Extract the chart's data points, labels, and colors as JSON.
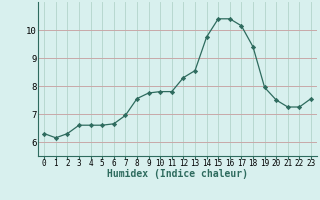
{
  "x": [
    0,
    1,
    2,
    3,
    4,
    5,
    6,
    7,
    8,
    9,
    10,
    11,
    12,
    13,
    14,
    15,
    16,
    17,
    18,
    19,
    20,
    21,
    22,
    23
  ],
  "y": [
    6.3,
    6.15,
    6.3,
    6.6,
    6.6,
    6.6,
    6.65,
    6.95,
    7.55,
    7.75,
    7.8,
    7.8,
    8.3,
    8.55,
    9.75,
    10.4,
    10.4,
    10.15,
    9.4,
    7.95,
    7.5,
    7.25,
    7.25,
    7.55
  ],
  "line_color": "#2e6b5e",
  "marker": "D",
  "marker_size": 2.2,
  "bg_color": "#d8f0ee",
  "grid_color": "#b8d8d0",
  "grid_major_color": "#c8a8a8",
  "xlabel": "Humidex (Indice chaleur)",
  "xlim": [
    -0.5,
    23.5
  ],
  "ylim": [
    5.5,
    11.0
  ],
  "yticks": [
    6,
    7,
    8,
    9,
    10
  ],
  "xticks": [
    0,
    1,
    2,
    3,
    4,
    5,
    6,
    7,
    8,
    9,
    10,
    11,
    12,
    13,
    14,
    15,
    16,
    17,
    18,
    19,
    20,
    21,
    22,
    23
  ]
}
